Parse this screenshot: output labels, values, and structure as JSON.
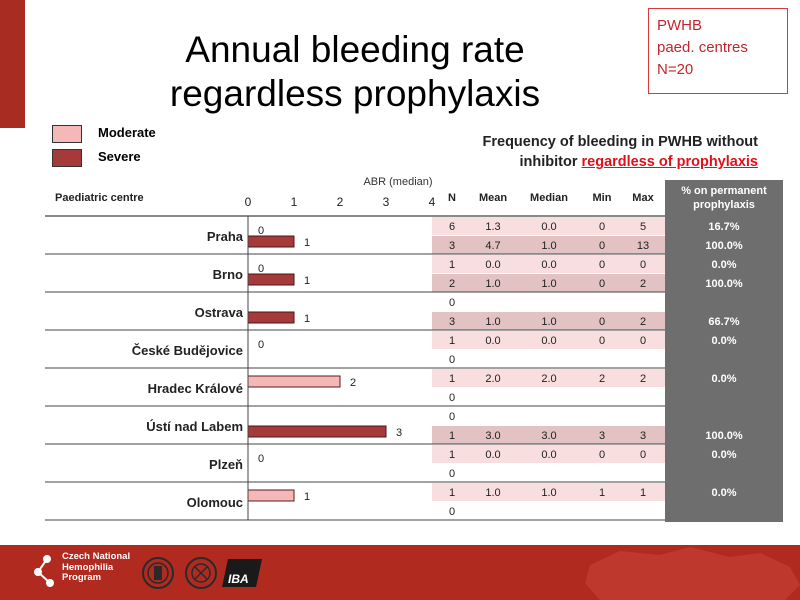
{
  "title_line1": "Annual bleeding rate",
  "title_line2": "regardless prophylaxis",
  "box": {
    "line1": "PWHB",
    "line2": "paed. centres",
    "line3": "N=20"
  },
  "legend": {
    "moderate": "Moderate",
    "severe": "Severe"
  },
  "frequency_title": {
    "line1": "Frequency of bleeding in PWHB without",
    "line2_prefix": "inhibitor ",
    "line2_highlight": "regardless of prophylaxis"
  },
  "headers": {
    "centre": "Paediatric centre",
    "n": "N",
    "mean": "Mean",
    "median": "Median",
    "min": "Min",
    "max": "Max",
    "perm_line1": "% on permanent",
    "perm_line2": "prophylaxis"
  },
  "colors": {
    "moderate": "#f5b8b8",
    "severe": "#a63a3a",
    "row_moderate": "#f8dede",
    "row_severe": "#e2c2c2",
    "perm_column": "#6e6e6e",
    "footer": "#b12a20"
  },
  "footer": {
    "line1": "Czech National",
    "line2": "Hemophilia",
    "line3": "Program",
    "logo_text": "IBA"
  },
  "chart_data": {
    "type": "bar",
    "orientation": "horizontal",
    "xlabel": "ABR (median)",
    "xlim": [
      0,
      4
    ],
    "xticks": [
      0,
      1,
      2,
      3,
      4
    ],
    "categories": [
      "Praha",
      "Brno",
      "Ostrava",
      "České Budějovice",
      "Hradec Králové",
      "Ústí nad Labem",
      "Plzeň",
      "Olomouc"
    ],
    "series": [
      {
        "name": "Moderate",
        "values": [
          0,
          0,
          null,
          0,
          2,
          null,
          0,
          1
        ]
      },
      {
        "name": "Severe",
        "values": [
          1,
          1,
          1,
          null,
          null,
          3,
          null,
          null
        ]
      }
    ],
    "table": [
      {
        "centre": "Praha",
        "rows": [
          {
            "N": "6",
            "Mean": "1.3",
            "Median": "0.0",
            "Min": "0",
            "Max": "5",
            "perm": "16.7%"
          },
          {
            "N": "3",
            "Mean": "4.7",
            "Median": "1.0",
            "Min": "0",
            "Max": "13",
            "perm": "100.0%"
          }
        ]
      },
      {
        "centre": "Brno",
        "rows": [
          {
            "N": "1",
            "Mean": "0.0",
            "Median": "0.0",
            "Min": "0",
            "Max": "0",
            "perm": "0.0%"
          },
          {
            "N": "2",
            "Mean": "1.0",
            "Median": "1.0",
            "Min": "0",
            "Max": "2",
            "perm": "100.0%"
          }
        ]
      },
      {
        "centre": "Ostrava",
        "rows": [
          {
            "N": "0",
            "Mean": "",
            "Median": "",
            "Min": "",
            "Max": "",
            "perm": ""
          },
          {
            "N": "3",
            "Mean": "1.0",
            "Median": "1.0",
            "Min": "0",
            "Max": "2",
            "perm": "66.7%"
          }
        ]
      },
      {
        "centre": "České Budějovice",
        "rows": [
          {
            "N": "1",
            "Mean": "0.0",
            "Median": "0.0",
            "Min": "0",
            "Max": "0",
            "perm": "0.0%"
          },
          {
            "N": "0",
            "Mean": "",
            "Median": "",
            "Min": "",
            "Max": "",
            "perm": ""
          }
        ]
      },
      {
        "centre": "Hradec Králové",
        "rows": [
          {
            "N": "1",
            "Mean": "2.0",
            "Median": "2.0",
            "Min": "2",
            "Max": "2",
            "perm": "0.0%"
          },
          {
            "N": "0",
            "Mean": "",
            "Median": "",
            "Min": "",
            "Max": "",
            "perm": ""
          }
        ]
      },
      {
        "centre": "Ústí nad Labem",
        "rows": [
          {
            "N": "0",
            "Mean": "",
            "Median": "",
            "Min": "",
            "Max": "",
            "perm": ""
          },
          {
            "N": "1",
            "Mean": "3.0",
            "Median": "3.0",
            "Min": "3",
            "Max": "3",
            "perm": "100.0%"
          }
        ]
      },
      {
        "centre": "Plzeň",
        "rows": [
          {
            "N": "1",
            "Mean": "0.0",
            "Median": "0.0",
            "Min": "0",
            "Max": "0",
            "perm": "0.0%"
          },
          {
            "N": "0",
            "Mean": "",
            "Median": "",
            "Min": "",
            "Max": "",
            "perm": ""
          }
        ]
      },
      {
        "centre": "Olomouc",
        "rows": [
          {
            "N": "1",
            "Mean": "1.0",
            "Median": "1.0",
            "Min": "1",
            "Max": "1",
            "perm": "0.0%"
          },
          {
            "N": "0",
            "Mean": "",
            "Median": "",
            "Min": "",
            "Max": "",
            "perm": ""
          }
        ]
      }
    ]
  }
}
